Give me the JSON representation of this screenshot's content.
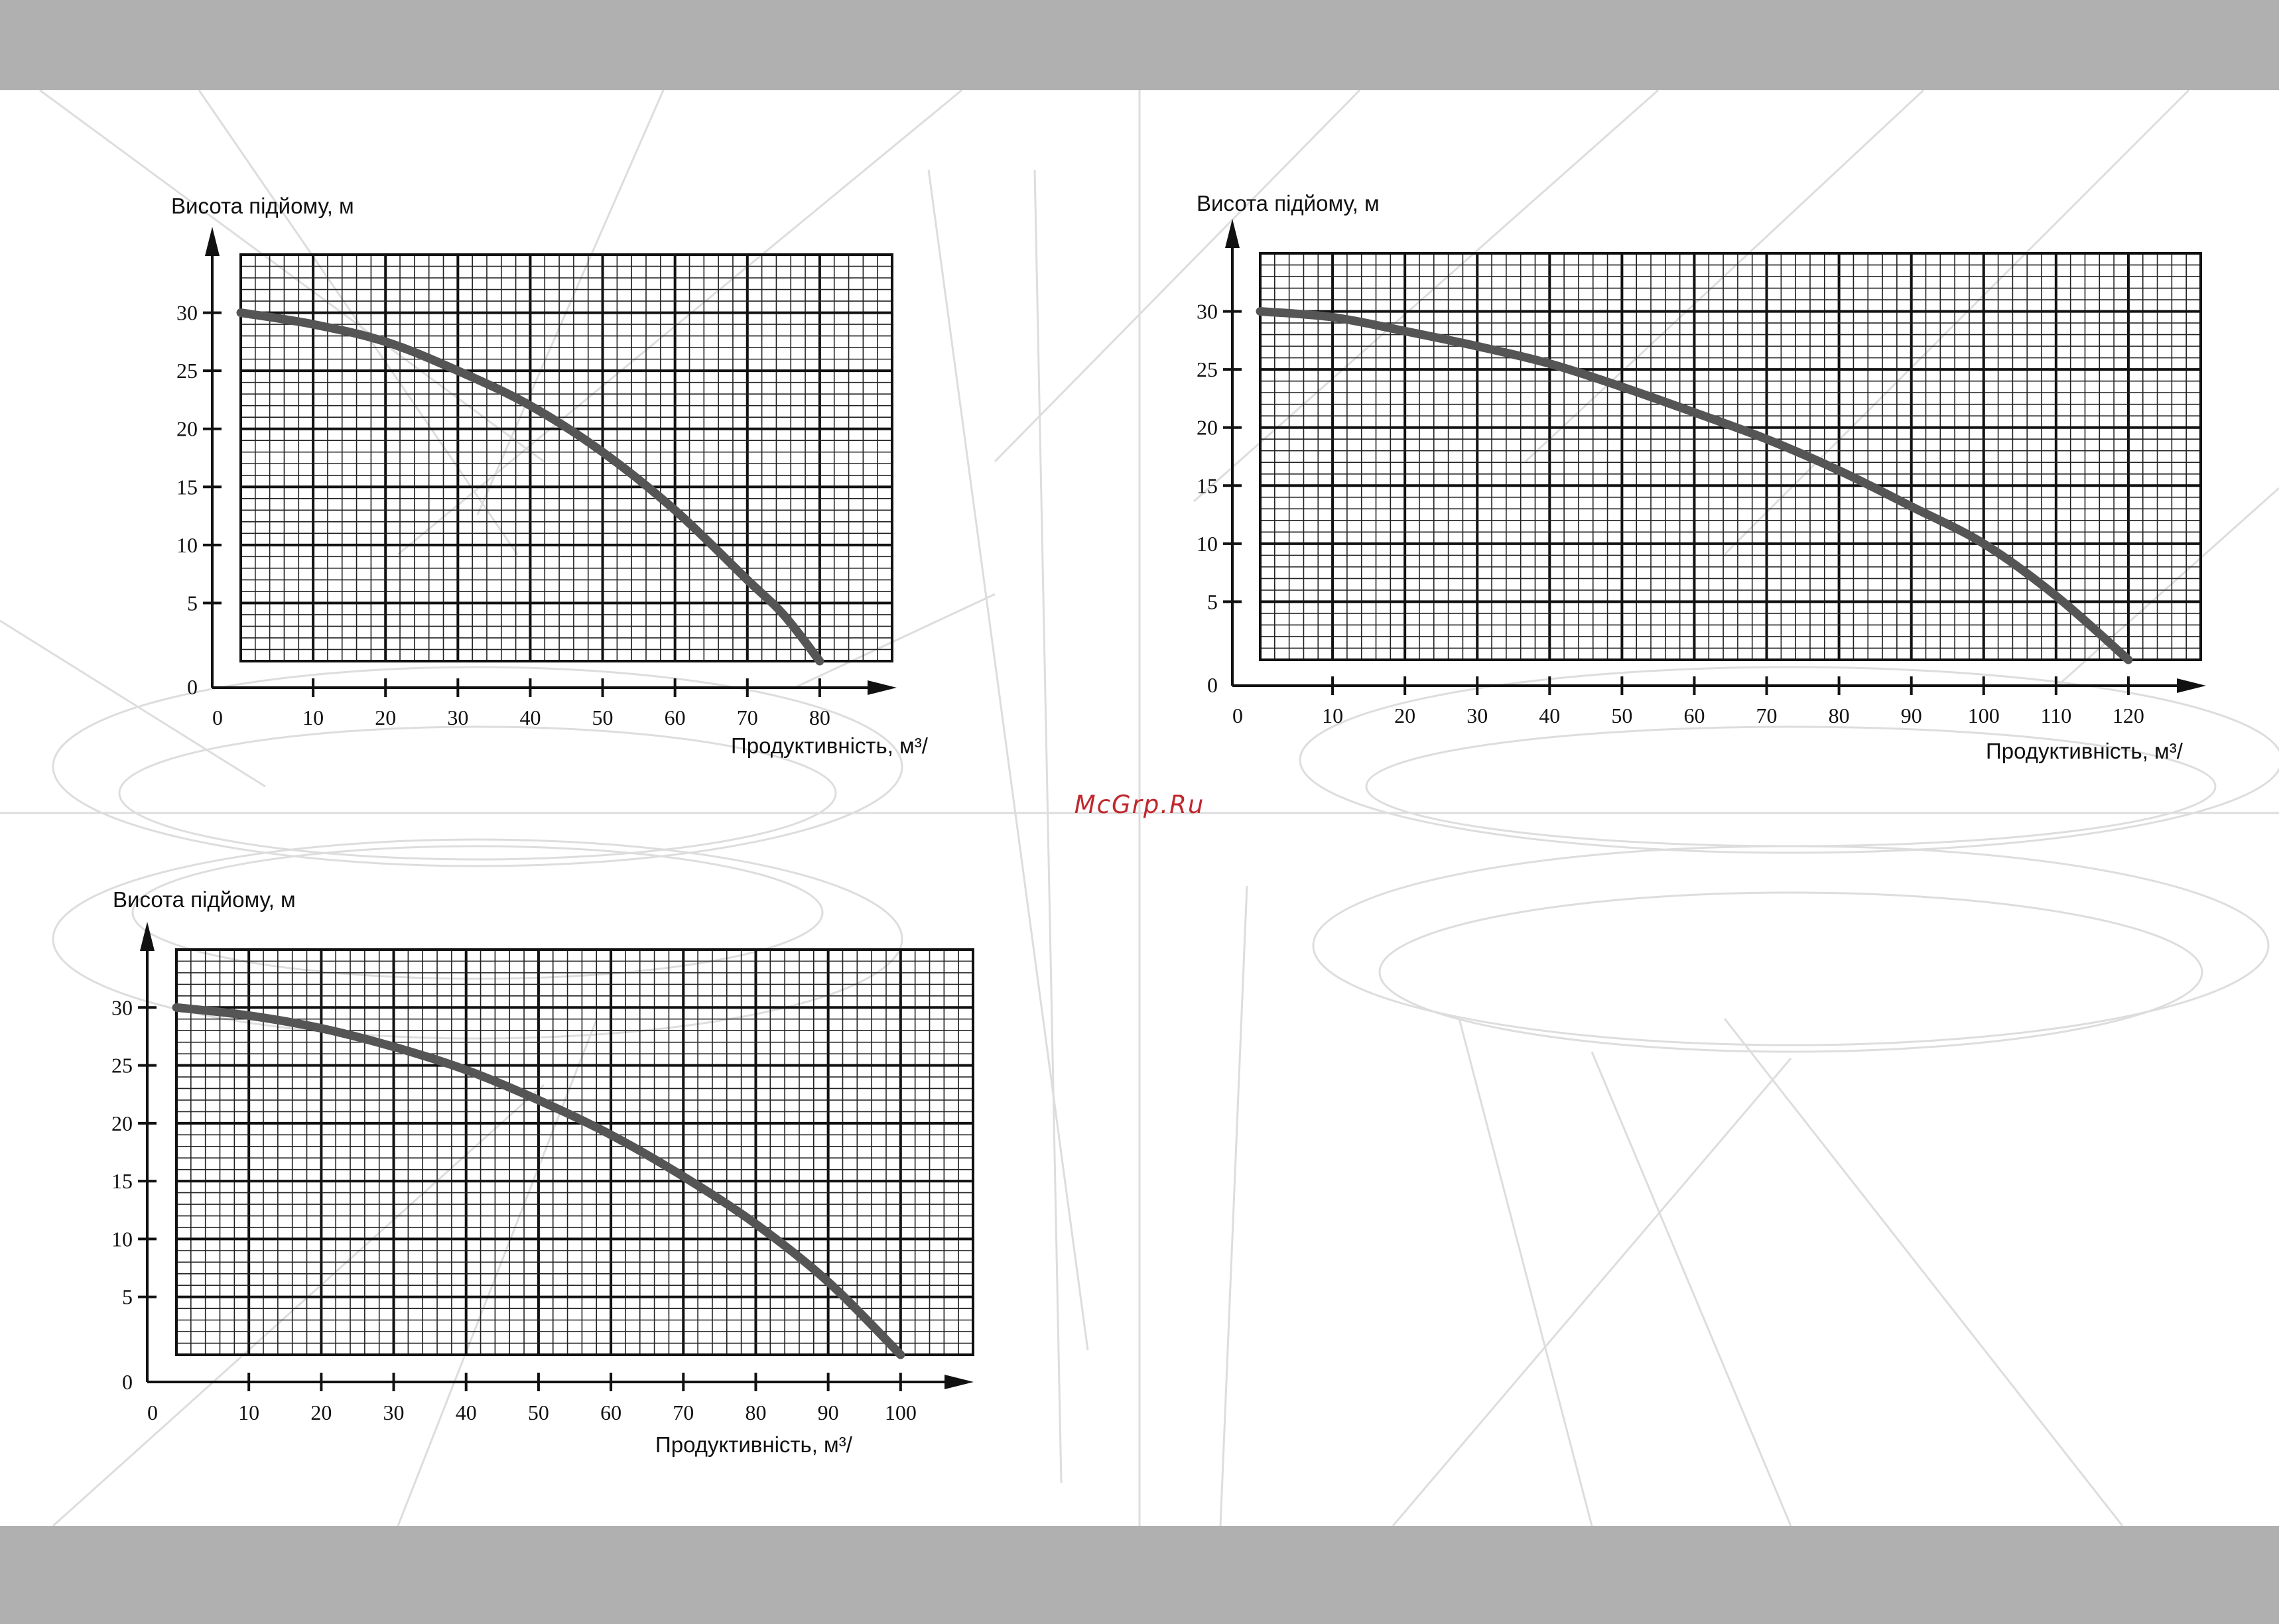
{
  "watermark": {
    "text": "McGrp.Ru",
    "color": "#c0282e"
  },
  "colors": {
    "band": "#b0b0b0",
    "curve": "#555555",
    "grid_major": "#111111",
    "grid_minor": "#222222"
  },
  "chart_data": [
    {
      "type": "line",
      "ylabel": "Висота підйому, м",
      "xlabel": "Продуктивність, м³/",
      "x_ticks": [
        0,
        10,
        20,
        30,
        40,
        50,
        60,
        70,
        80
      ],
      "y_ticks": [
        0,
        5,
        10,
        15,
        20,
        25,
        30
      ],
      "xlim": [
        0,
        90
      ],
      "ylim": [
        0,
        35
      ],
      "grid": true,
      "series": [
        {
          "x": [
            0,
            10,
            20,
            30,
            40,
            50,
            60,
            70,
            75,
            80
          ],
          "y": [
            30,
            29,
            27.5,
            25,
            22,
            18,
            13,
            7,
            4,
            0
          ]
        }
      ]
    },
    {
      "type": "line",
      "ylabel": "Висота підйому, м",
      "xlabel": "Продуктивність, м³/",
      "x_ticks": [
        0,
        10,
        20,
        30,
        40,
        50,
        60,
        70,
        80,
        90,
        100,
        110,
        120
      ],
      "y_ticks": [
        0,
        5,
        10,
        15,
        20,
        25,
        30
      ],
      "xlim": [
        0,
        130
      ],
      "ylim": [
        0,
        35
      ],
      "grid": true,
      "series": [
        {
          "x": [
            0,
            10,
            20,
            30,
            40,
            50,
            60,
            70,
            80,
            90,
            100,
            110,
            120
          ],
          "y": [
            30,
            29.5,
            28.3,
            27,
            25.5,
            23.5,
            21.3,
            19,
            16.3,
            13.2,
            10,
            5.5,
            0
          ]
        }
      ]
    },
    {
      "type": "line",
      "ylabel": "Висота підйому, м",
      "xlabel": "Продуктивність, м³/",
      "x_ticks": [
        0,
        10,
        20,
        30,
        40,
        50,
        60,
        70,
        80,
        90,
        100
      ],
      "y_ticks": [
        0,
        5,
        10,
        15,
        20,
        25,
        30
      ],
      "xlim": [
        0,
        110
      ],
      "ylim": [
        0,
        35
      ],
      "grid": true,
      "series": [
        {
          "x": [
            0,
            10,
            20,
            30,
            40,
            50,
            60,
            70,
            80,
            90,
            100
          ],
          "y": [
            30,
            29.3,
            28.2,
            26.6,
            24.6,
            22,
            19,
            15.4,
            11.3,
            6.3,
            0
          ]
        }
      ]
    }
  ]
}
